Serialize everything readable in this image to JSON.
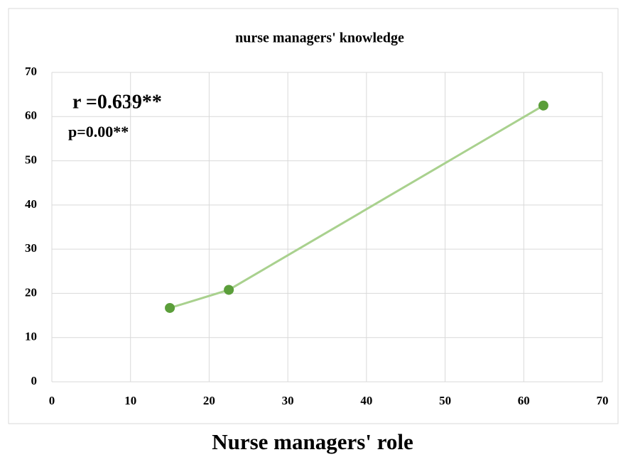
{
  "chart_data": {
    "type": "line",
    "title": "nurse managers' knowledge",
    "x_label": "Nurse managers' role",
    "annotations": [
      "r =0.639**",
      "p=0.00**"
    ],
    "x": [
      15,
      22.5,
      62.5
    ],
    "series": [
      {
        "name": "nurse managers' knowledge",
        "color": "#a9d18e",
        "marker_color": "#5b9e3a",
        "values": [
          16.7,
          20.8,
          62.5
        ]
      }
    ],
    "xlim": [
      0,
      70
    ],
    "xticks": [
      0,
      10,
      20,
      30,
      40,
      50,
      60,
      70
    ],
    "ylim": [
      0,
      70
    ],
    "yticks": [
      0,
      10,
      20,
      30,
      40,
      50,
      60,
      70
    ],
    "grid": true
  }
}
